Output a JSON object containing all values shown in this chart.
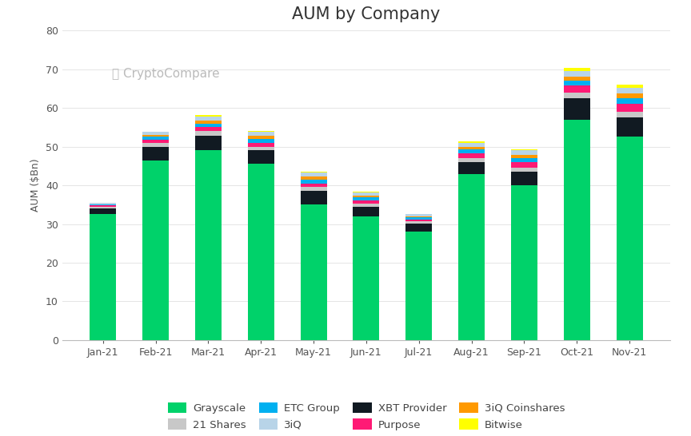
{
  "months": [
    "Jan-21",
    "Feb-21",
    "Mar-21",
    "Apr-21",
    "May-21",
    "Jun-21",
    "Jul-21",
    "Aug-21",
    "Sep-21",
    "Oct-21",
    "Nov-21"
  ],
  "series": {
    "Grayscale": [
      32.5,
      46.5,
      49.0,
      45.5,
      35.0,
      32.0,
      28.0,
      43.0,
      40.0,
      57.0,
      52.5
    ],
    "XBT Provider": [
      1.5,
      3.5,
      3.8,
      3.5,
      3.5,
      2.5,
      2.2,
      3.0,
      3.5,
      5.5,
      5.0
    ],
    "21 Shares": [
      0.5,
      1.0,
      1.2,
      1.0,
      1.0,
      0.8,
      0.5,
      1.0,
      1.0,
      1.5,
      1.5
    ],
    "Purpose": [
      0.3,
      0.8,
      1.0,
      1.0,
      1.0,
      0.8,
      0.5,
      1.2,
      1.5,
      1.8,
      2.0
    ],
    "ETC Group": [
      0.3,
      0.8,
      1.0,
      1.0,
      1.0,
      0.8,
      0.5,
      1.0,
      1.0,
      1.2,
      1.5
    ],
    "3iQ Coinshares": [
      0.0,
      0.5,
      0.8,
      0.8,
      0.8,
      0.5,
      0.3,
      0.8,
      0.8,
      1.0,
      1.2
    ],
    "3iQ": [
      0.3,
      0.8,
      1.0,
      1.0,
      1.0,
      0.8,
      0.5,
      1.0,
      1.2,
      1.5,
      1.5
    ],
    "Bitwise": [
      0.0,
      0.0,
      0.3,
      0.3,
      0.3,
      0.2,
      0.1,
      0.3,
      0.3,
      0.8,
      0.8
    ]
  },
  "colors": {
    "Grayscale": "#00d26a",
    "XBT Provider": "#111a22",
    "21 Shares": "#c8c8c8",
    "Purpose": "#ff1a75",
    "ETC Group": "#00b0f0",
    "3iQ Coinshares": "#ff9900",
    "3iQ": "#b8d4e8",
    "Bitwise": "#ffff00"
  },
  "title": "AUM by Company",
  "ylabel": "AUM ($Bn)",
  "ylim": [
    0,
    80
  ],
  "yticks": [
    0,
    10,
    20,
    30,
    40,
    50,
    60,
    70,
    80
  ],
  "background_color": "#ffffff"
}
